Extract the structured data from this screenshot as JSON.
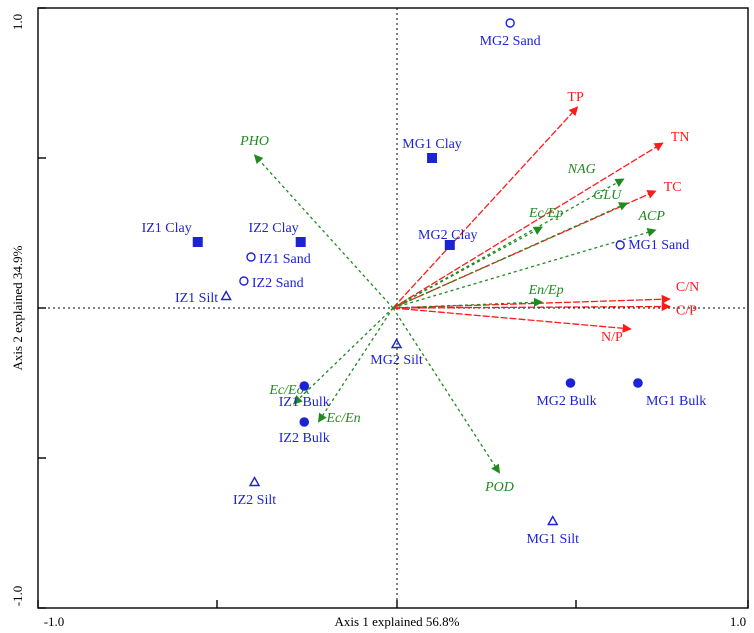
{
  "chart_data": {
    "type": "scatter",
    "subtype": "rda-biplot",
    "xlabel": "Axis 1 explained 56.8%",
    "ylabel": "Axis 2 explained 34.9%",
    "xlim": [
      -1.0,
      1.0
    ],
    "ylim": [
      -1.0,
      1.0
    ],
    "x_tick_labels": [
      "-1.0",
      "1.0"
    ],
    "y_tick_labels": [
      "1.0",
      "-1.0"
    ],
    "grid": false,
    "zero_lines": true,
    "colors": {
      "soil_vector": "#ff1a1a",
      "enzyme_vector": "#1f8a1f",
      "sample": "#1c22d6"
    },
    "vectors": [
      {
        "name": "TP",
        "x": 0.52,
        "y": 0.67,
        "group": "soil",
        "italic": false
      },
      {
        "name": "TN",
        "x": 0.76,
        "y": 0.55,
        "group": "soil",
        "italic": false
      },
      {
        "name": "TC",
        "x": 0.74,
        "y": 0.39,
        "group": "soil",
        "italic": false
      },
      {
        "name": "C/N",
        "x": 0.78,
        "y": 0.03,
        "group": "soil",
        "italic": false
      },
      {
        "name": "C/P",
        "x": 0.78,
        "y": 0.005,
        "group": "soil",
        "italic": false
      },
      {
        "name": "N/P",
        "x": 0.67,
        "y": -0.07,
        "group": "soil",
        "italic": false
      },
      {
        "name": "NAG",
        "x": 0.65,
        "y": 0.43,
        "group": "enzyme",
        "italic": true
      },
      {
        "name": "GLU",
        "x": 0.66,
        "y": 0.35,
        "group": "enzyme",
        "italic": true
      },
      {
        "name": "ACP",
        "x": 0.74,
        "y": 0.26,
        "group": "enzyme",
        "italic": true
      },
      {
        "name": "Ec/Ep",
        "x": 0.42,
        "y": 0.27,
        "group": "enzyme",
        "italic": true
      },
      {
        "name": "En/Ep",
        "x": 0.42,
        "y": 0.02,
        "group": "enzyme",
        "italic": true
      },
      {
        "name": "PHO",
        "x": -0.39,
        "y": 0.51,
        "group": "enzyme",
        "italic": true
      },
      {
        "name": "Ec/Eox",
        "x": -0.28,
        "y": -0.32,
        "group": "enzyme",
        "italic": true
      },
      {
        "name": "Ec/En",
        "x": -0.21,
        "y": -0.38,
        "group": "enzyme",
        "italic": true
      },
      {
        "name": "POD",
        "x": 0.3,
        "y": -0.55,
        "group": "enzyme",
        "italic": true
      }
    ],
    "samples": [
      {
        "name": "MG2 Sand",
        "x": 0.33,
        "y": 0.95,
        "marker": "circle-open"
      },
      {
        "name": "MG1 Clay",
        "x": 0.11,
        "y": 0.5,
        "marker": "square"
      },
      {
        "name": "IZ1 Clay",
        "x": -0.55,
        "y": 0.22,
        "marker": "square"
      },
      {
        "name": "IZ2 Clay",
        "x": -0.26,
        "y": 0.22,
        "marker": "square"
      },
      {
        "name": "MG2 Clay",
        "x": 0.16,
        "y": 0.21,
        "marker": "square"
      },
      {
        "name": "IZ1 Sand",
        "x": -0.4,
        "y": 0.17,
        "marker": "circle-open"
      },
      {
        "name": "IZ2 Sand",
        "x": -0.42,
        "y": 0.09,
        "marker": "circle-open"
      },
      {
        "name": "MG1 Sand",
        "x": 0.64,
        "y": 0.21,
        "marker": "circle-open"
      },
      {
        "name": "IZ1 Silt",
        "x": -0.47,
        "y": 0.04,
        "marker": "triangle-open"
      },
      {
        "name": "MG2 Silt",
        "x": 0.01,
        "y": -0.12,
        "marker": "triangle-open"
      },
      {
        "name": "IZ1 Bulk",
        "x": -0.25,
        "y": -0.26,
        "marker": "circle"
      },
      {
        "name": "IZ2 Bulk",
        "x": -0.25,
        "y": -0.38,
        "marker": "circle"
      },
      {
        "name": "MG2 Bulk",
        "x": 0.5,
        "y": -0.25,
        "marker": "circle"
      },
      {
        "name": "MG1 Bulk",
        "x": 0.69,
        "y": -0.25,
        "marker": "circle"
      },
      {
        "name": "IZ2 Silt",
        "x": -0.39,
        "y": -0.58,
        "marker": "triangle-open"
      },
      {
        "name": "MG1 Silt",
        "x": 0.45,
        "y": -0.71,
        "marker": "triangle-open"
      }
    ]
  }
}
